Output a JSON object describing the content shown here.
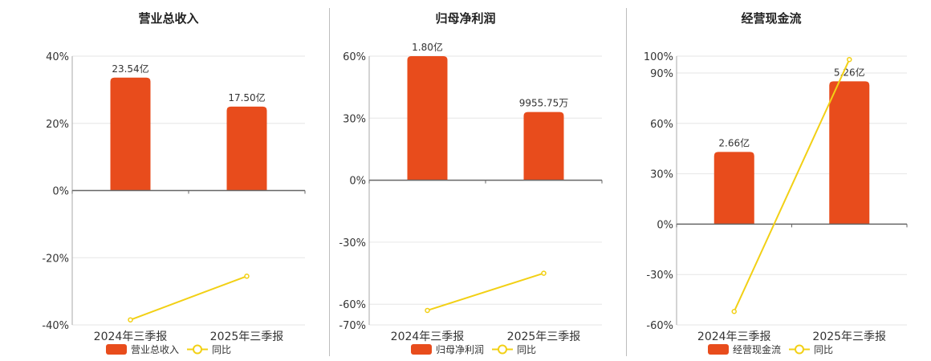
{
  "colors": {
    "bar": "#e84c1c",
    "line": "#f2d015",
    "grid": "#e6e6e6",
    "axis": "#666666"
  },
  "chart_data": [
    {
      "type": "bar",
      "title": "营业总收入",
      "categories": [
        "2024年三季报",
        "2025年三季报"
      ],
      "series": [
        {
          "name": "营业总收入",
          "type": "bar",
          "values": [
            23.54,
            17.5
          ],
          "unit": "亿",
          "labels": [
            "23.54亿",
            "17.50亿"
          ]
        },
        {
          "name": "同比",
          "type": "line",
          "values": [
            -38.5,
            -25.5
          ],
          "unit": "%"
        }
      ],
      "ylim": [
        -40,
        40
      ],
      "yticks": [
        40,
        20,
        0,
        -20,
        -40
      ],
      "ytick_labels": [
        "40%",
        "20%",
        "0%",
        "-20%",
        "-40%"
      ],
      "bar_percent_values": [
        33.6,
        25.0
      ],
      "legend_position": "bottom",
      "grid": true
    },
    {
      "type": "bar",
      "title": "归母净利润",
      "categories": [
        "2024年三季报",
        "2025年三季报"
      ],
      "series": [
        {
          "name": "归母净利润",
          "type": "bar",
          "values": [
            1.8,
            0.995575
          ],
          "unit": "亿",
          "labels": [
            "1.80亿",
            "9955.75万"
          ]
        },
        {
          "name": "同比",
          "type": "line",
          "values": [
            -63,
            -45
          ],
          "unit": "%"
        }
      ],
      "ylim": [
        -70,
        60
      ],
      "yticks": [
        60,
        30,
        0,
        -30,
        -60,
        -70
      ],
      "ytick_labels": [
        "60%",
        "30%",
        "0%",
        "-30%",
        "-60%",
        "-70%"
      ],
      "bar_percent_values": [
        60,
        33
      ],
      "legend_position": "bottom",
      "grid": true
    },
    {
      "type": "bar",
      "title": "经营现金流",
      "categories": [
        "2024年三季报",
        "2025年三季报"
      ],
      "series": [
        {
          "name": "经营现金流",
          "type": "bar",
          "values": [
            2.66,
            5.26
          ],
          "unit": "亿",
          "labels": [
            "2.66亿",
            "5.26亿"
          ]
        },
        {
          "name": "同比",
          "type": "line",
          "values": [
            -52,
            98
          ],
          "unit": "%"
        }
      ],
      "ylim": [
        -60,
        100
      ],
      "yticks": [
        100,
        90,
        60,
        30,
        0,
        -30,
        -60
      ],
      "ytick_labels": [
        "100%",
        "90%",
        "60%",
        "30%",
        "0%",
        "-30%",
        "-60%"
      ],
      "bar_percent_values": [
        43,
        85
      ],
      "legend_position": "bottom",
      "grid": true
    }
  ]
}
